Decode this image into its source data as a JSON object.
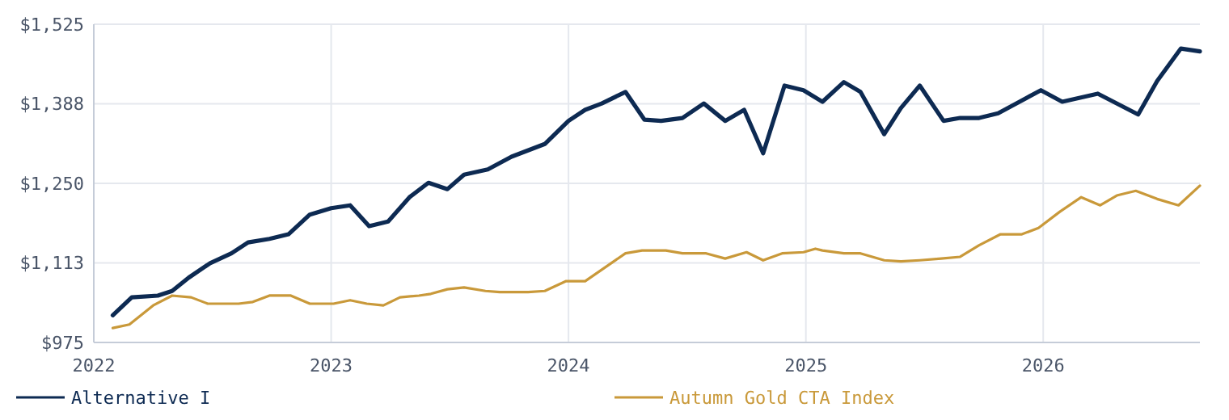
{
  "chart_data": {
    "type": "line",
    "xlim": [
      2022,
      2026.66
    ],
    "xticks": [
      2022,
      2023,
      2024,
      2025,
      2026
    ],
    "ylim": [
      975,
      1525
    ],
    "yticks": [
      {
        "value": 975,
        "label": "$975"
      },
      {
        "value": 1112.5,
        "label": "$1,113"
      },
      {
        "value": 1250,
        "label": "$1,250"
      },
      {
        "value": 1387.5,
        "label": "$1,388"
      },
      {
        "value": 1525,
        "label": "$1,525"
      }
    ],
    "grid": true,
    "legend": "bottom",
    "marker": "none",
    "line_style": "solid",
    "series": [
      {
        "name": "Alternative I",
        "color": "#0d2a52",
        "x": [
          2022.08,
          2022.16,
          2022.27,
          2022.33,
          2022.4,
          2022.49,
          2022.58,
          2022.65,
          2022.74,
          2022.82,
          2022.91,
          2023.0,
          2023.08,
          2023.16,
          2023.24,
          2023.33,
          2023.41,
          2023.49,
          2023.56,
          2023.66,
          2023.76,
          2023.9,
          2024.0,
          2024.07,
          2024.14,
          2024.24,
          2024.32,
          2024.39,
          2024.48,
          2024.57,
          2024.66,
          2024.74,
          2024.82,
          2024.91,
          2024.99,
          2025.07,
          2025.16,
          2025.23,
          2025.33,
          2025.4,
          2025.48,
          2025.58,
          2025.65,
          2025.73,
          2025.81,
          2025.9,
          2025.99,
          2026.08,
          2026.23,
          2026.4,
          2026.48,
          2026.58,
          2026.66
        ],
        "values": [
          1022,
          1053,
          1056,
          1064,
          1087,
          1112,
          1129,
          1148,
          1154,
          1162,
          1196,
          1207,
          1212,
          1176,
          1184,
          1226,
          1251,
          1240,
          1265,
          1274,
          1296,
          1318,
          1358,
          1377,
          1388,
          1408,
          1360,
          1358,
          1363,
          1388,
          1358,
          1377,
          1302,
          1419,
          1411,
          1391,
          1425,
          1408,
          1335,
          1380,
          1419,
          1358,
          1363,
          1363,
          1371,
          1391,
          1411,
          1391,
          1405,
          1369,
          1427,
          1483,
          1478
        ]
      },
      {
        "name": "Autumn Gold CTA Index",
        "color": "#c9993a",
        "x": [
          2022.08,
          2022.15,
          2022.25,
          2022.33,
          2022.41,
          2022.48,
          2022.61,
          2022.67,
          2022.74,
          2022.83,
          2022.91,
          2023.01,
          2023.08,
          2023.15,
          2023.22,
          2023.29,
          2023.37,
          2023.42,
          2023.49,
          2023.56,
          2023.65,
          2023.71,
          2023.83,
          2023.9,
          2023.99,
          2024.07,
          2024.24,
          2024.31,
          2024.41,
          2024.48,
          2024.58,
          2024.66,
          2024.75,
          2024.82,
          2024.9,
          2024.99,
          2025.04,
          2025.07,
          2025.16,
          2025.23,
          2025.33,
          2025.4,
          2025.48,
          2025.57,
          2025.65,
          2025.73,
          2025.82,
          2025.91,
          2025.98,
          2026.07,
          2026.16,
          2026.24,
          2026.31,
          2026.39,
          2026.48,
          2026.57,
          2026.66
        ],
        "values": [
          1000,
          1006,
          1039,
          1056,
          1053,
          1042,
          1042,
          1045,
          1056,
          1056,
          1042,
          1042,
          1048,
          1042,
          1039,
          1053,
          1056,
          1059,
          1067,
          1070,
          1064,
          1062,
          1062,
          1064,
          1081,
          1081,
          1129,
          1134,
          1134,
          1129,
          1129,
          1120,
          1131,
          1117,
          1129,
          1131,
          1137,
          1134,
          1129,
          1129,
          1117,
          1115,
          1117,
          1120,
          1123,
          1143,
          1162,
          1162,
          1173,
          1201,
          1226,
          1212,
          1229,
          1237,
          1223,
          1212,
          1246
        ]
      }
    ]
  }
}
